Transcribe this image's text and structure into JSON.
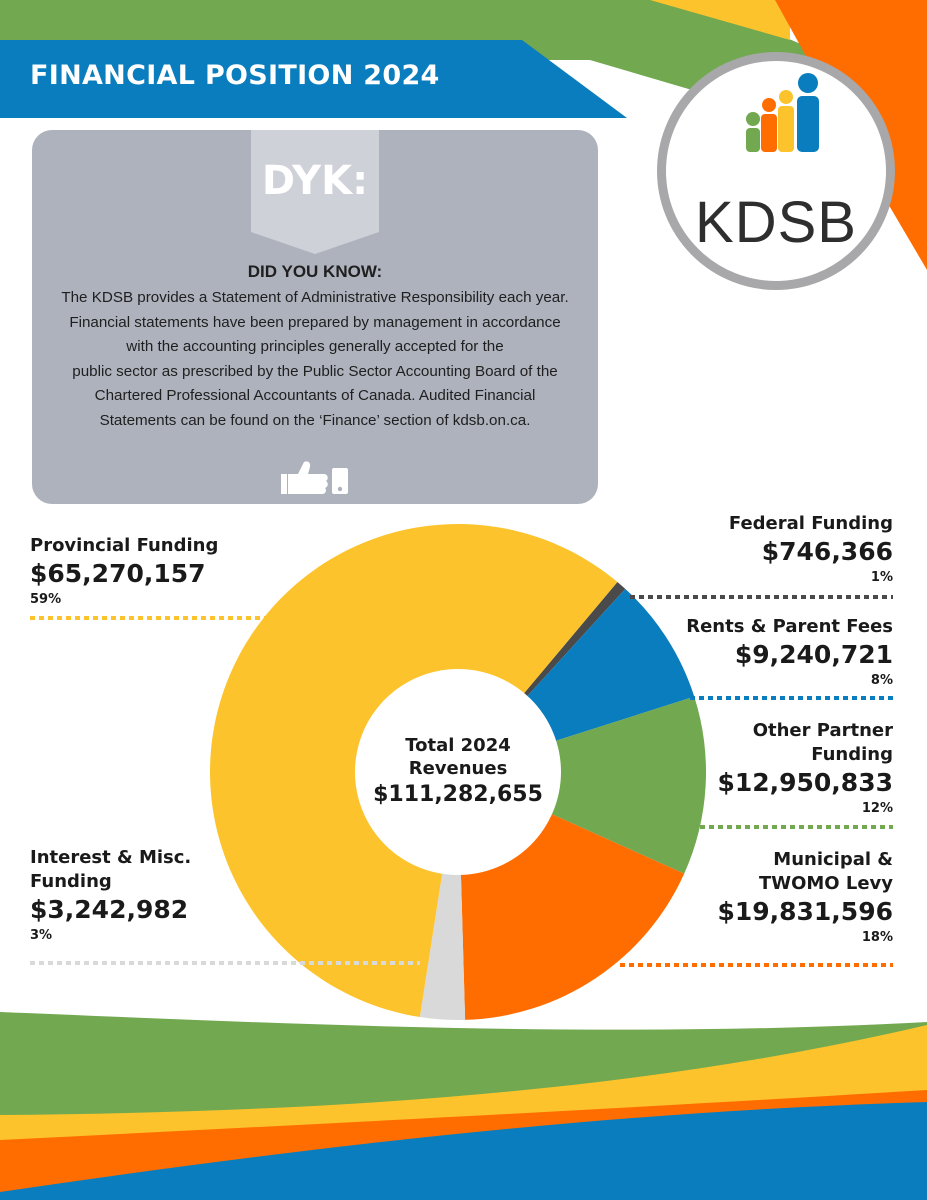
{
  "header": {
    "title": "FINANCIAL POSITION 2024"
  },
  "logo": {
    "text": "KDSB"
  },
  "dyk": {
    "tag": "DYK:",
    "heading": "DID YOU KNOW:",
    "lines": [
      "The KDSB provides a Statement of Administrative Responsibility each year.",
      "Financial statements have been prepared by management in accordance",
      "with the accounting principles generally accepted for the",
      "public sector as prescribed by the Public Sector Accounting Board of the",
      "Chartered Professional Accountants of Canada.  Audited Financial",
      "Statements can be found on the ‘Finance’ section of kdsb.on.ca."
    ],
    "icon": "thumbs-up-icon"
  },
  "colors": {
    "green": "#72a84f",
    "blue": "#0a7dbe",
    "yellow": "#fcc32c",
    "orange": "#ff6d00",
    "dark_gray": "#4a4a4a",
    "light_gray": "#d9d9d9",
    "box_gray": "#aeb2bd"
  },
  "chart_data": {
    "type": "pie",
    "title": "Total 2024 Revenues",
    "total": "$111,282,655",
    "center_label_line1": "Total 2024",
    "center_label_line2": "Revenues",
    "series": [
      {
        "name": "Provincial Funding",
        "amount": "$65,270,157",
        "value": 65270157,
        "percent": "59%",
        "color": "#fcc32c"
      },
      {
        "name": "Federal Funding",
        "amount": "$746,366",
        "value": 746366,
        "percent": "1%",
        "color": "#4a4a4a"
      },
      {
        "name": "Rents & Parent Fees",
        "amount": "$9,240,721",
        "value": 9240721,
        "percent": "8%",
        "color": "#0a7dbe"
      },
      {
        "name": "Other Partner Funding",
        "name_lines": [
          "Other Partner",
          "Funding"
        ],
        "amount": "$12,950,833",
        "value": 12950833,
        "percent": "12%",
        "color": "#72a84f"
      },
      {
        "name": "Municipal & TWOMO Levy",
        "name_lines": [
          "Municipal &",
          "TWOMO Levy"
        ],
        "amount": "$19,831,596",
        "value": 19831596,
        "percent": "18%",
        "color": "#ff6d00"
      },
      {
        "name": "Interest & Misc. Funding",
        "name_lines": [
          "Interest & Misc.",
          "Funding"
        ],
        "amount": "$3,242,982",
        "value": 3242982,
        "percent": "3%",
        "color": "#d9d9d9"
      }
    ]
  }
}
